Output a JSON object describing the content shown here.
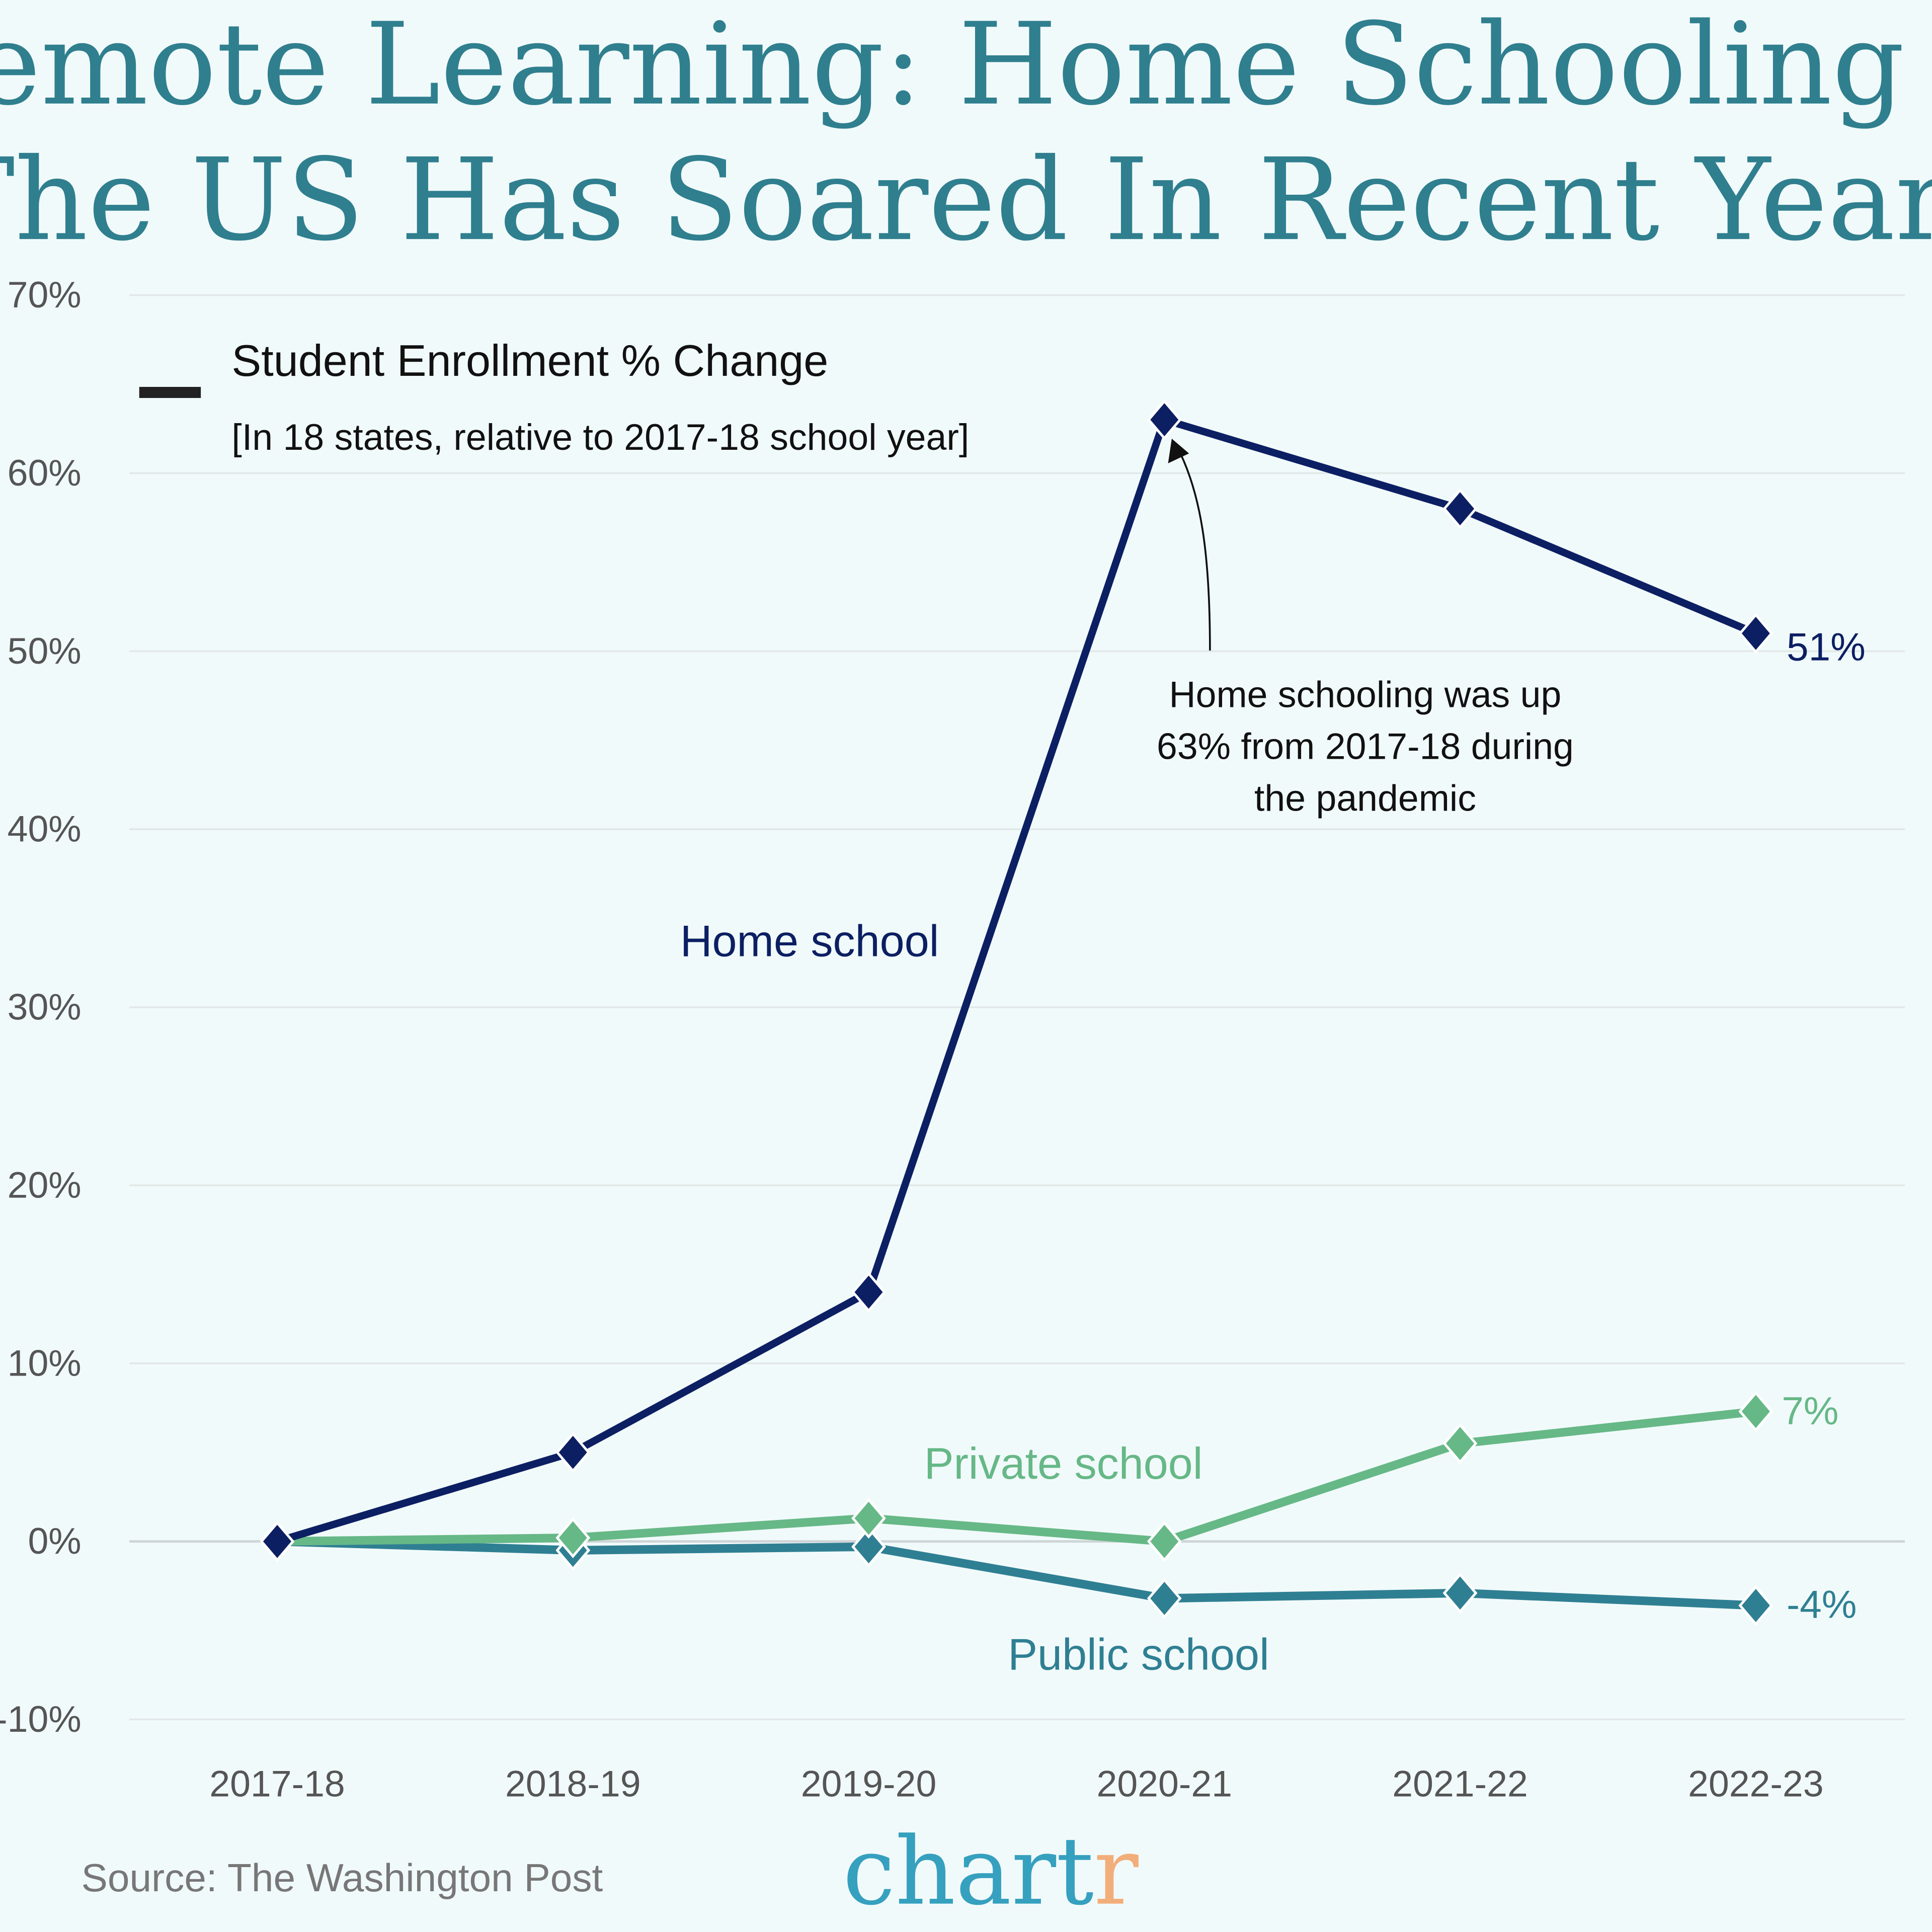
{
  "title": {
    "line1": "Remote Learning: Home Schooling In",
    "line2": "The US Has Soared In Recent Years"
  },
  "legend": {
    "title": "Student Enrollment % Change",
    "subtitle": "[In 18 states, relative to 2017-18 school year]"
  },
  "annotation": {
    "lines": [
      "Home schooling was up",
      "63% from 2017-18 during",
      "the pandemic"
    ]
  },
  "footer": {
    "source": "Source: The Washington Post",
    "brand_main": "chart",
    "brand_accent": "r"
  },
  "colors": {
    "background": "#f1fafa",
    "title": "#2f7f8f",
    "home": "#0c1f63",
    "private": "#66b887",
    "public": "#2f7f93",
    "grid": "#e2e8e8",
    "zero": "#cfd4d6",
    "brand": "#36a0bf",
    "brand_accent": "#f2ae7a"
  },
  "chart_data": {
    "type": "line",
    "title": "Remote Learning: Home Schooling In The US Has Soared In Recent Years",
    "subtitle": "Student Enrollment % Change [In 18 states, relative to 2017-18 school year]",
    "xlabel": "",
    "ylabel": "",
    "categories": [
      "2017-18",
      "2018-19",
      "2019-20",
      "2020-21",
      "2021-22",
      "2022-23"
    ],
    "yticks": [
      "70%",
      "60%",
      "50%",
      "40%",
      "30%",
      "20%",
      "10%",
      "0%",
      "-10%"
    ],
    "ylim": [
      -10,
      70
    ],
    "grid": true,
    "legend_position": "top-left",
    "series": [
      {
        "name": "Home school",
        "values": [
          0,
          5,
          14,
          63,
          58,
          51
        ],
        "end_label": "51%"
      },
      {
        "name": "Private school",
        "values": [
          0,
          0.2,
          1.3,
          0,
          5.5,
          7.3
        ],
        "end_label": "7%"
      },
      {
        "name": "Public school",
        "values": [
          0,
          -0.5,
          -0.3,
          -3.2,
          -2.9,
          -3.6
        ],
        "end_label": "-4%"
      }
    ],
    "annotations": [
      {
        "text": "Home schooling was up 63% from 2017-18 during the pandemic",
        "x": "2020-21",
        "y": 63
      }
    ],
    "source": "Source: The Washington Post"
  }
}
